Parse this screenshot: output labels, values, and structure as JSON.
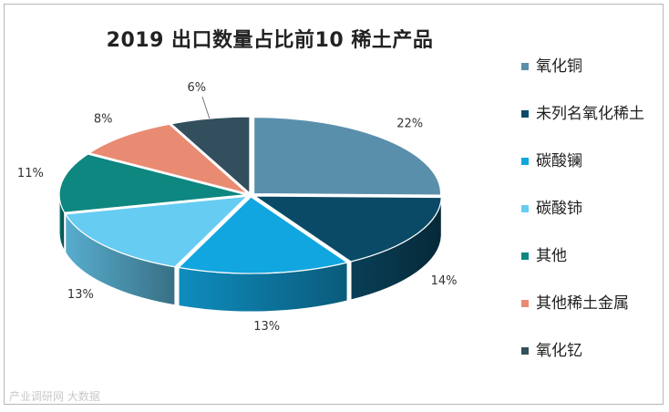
{
  "chart_data": {
    "type": "pie",
    "style": "3d-exploded",
    "title": "2019 出口数量占比前10 稀土产品",
    "slices": [
      {
        "label": "氧化铜",
        "value": 22,
        "display": "22%",
        "color": "#5a8fab"
      },
      {
        "label": "未列名氧化稀土",
        "value": 14,
        "display": "14%",
        "color": "#0b4a66"
      },
      {
        "label": "碳酸镧",
        "value": 13,
        "display": "13%",
        "color": "#12a6e0"
      },
      {
        "label": "碳酸铈",
        "value": 13,
        "display": "13%",
        "color": "#66ccf2"
      },
      {
        "label": "其他",
        "value": 11,
        "display": "11%",
        "color": "#0d8780"
      },
      {
        "label": "其他稀土金属",
        "value": 8,
        "display": "8%",
        "color": "#e98b72"
      },
      {
        "label": "氧化钇",
        "value": 6,
        "display": "6%",
        "color": "#334f5e"
      }
    ],
    "legend_position": "right"
  },
  "watermark": "产业调研网 大数据"
}
